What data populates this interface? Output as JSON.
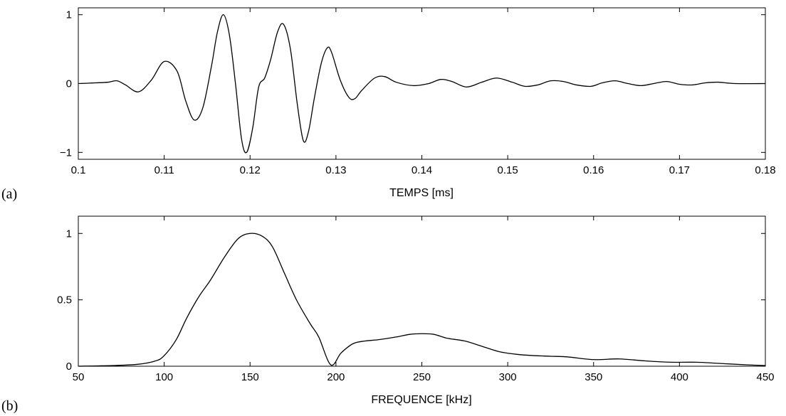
{
  "chart_data": [
    {
      "type": "line",
      "panel_label": "(a)",
      "title": "",
      "xlabel": "TEMPS [ms]",
      "ylabel": "",
      "xlim": [
        0.1,
        0.18
      ],
      "ylim": [
        -1.1,
        1.1
      ],
      "xticks": [
        "0.1",
        "0.11",
        "0.12",
        "0.13",
        "0.14",
        "0.15",
        "0.16",
        "0.17",
        "0.18"
      ],
      "xtick_values": [
        0.1,
        0.11,
        0.12,
        0.13,
        0.14,
        0.15,
        0.16,
        0.17,
        0.18
      ],
      "yticks": [
        "−1",
        "0",
        "1"
      ],
      "ytick_values": [
        -1,
        0,
        1
      ],
      "grid": false,
      "series": [
        {
          "x": [
            0.1,
            0.102,
            0.1035,
            0.1045,
            0.1055,
            0.107,
            0.1085,
            0.11,
            0.1115,
            0.1125,
            0.1135,
            0.1145,
            0.1155,
            0.1162,
            0.1169,
            0.1176,
            0.1183,
            0.119,
            0.1196,
            0.1203,
            0.121,
            0.1217,
            0.1224,
            0.1232,
            0.1239,
            0.1247,
            0.1255,
            0.1262,
            0.1268,
            0.1275,
            0.1283,
            0.129,
            0.1295,
            0.1305,
            0.1315,
            0.1322,
            0.133,
            0.1345,
            0.1357,
            0.137,
            0.139,
            0.1408,
            0.1422,
            0.1435,
            0.1452,
            0.147,
            0.1487,
            0.1505,
            0.152,
            0.1535,
            0.155,
            0.1565,
            0.158,
            0.1597,
            0.161,
            0.1625,
            0.164,
            0.1655,
            0.167,
            0.1685,
            0.17,
            0.1715,
            0.173,
            0.1745,
            0.1765,
            0.18
          ],
          "y": [
            0.0,
            0.01,
            0.02,
            0.04,
            -0.02,
            -0.12,
            0.05,
            0.32,
            0.18,
            -0.25,
            -0.53,
            -0.35,
            0.25,
            0.75,
            1.0,
            0.7,
            0.0,
            -0.8,
            -1.0,
            -0.65,
            -0.05,
            0.08,
            0.35,
            0.75,
            0.86,
            0.5,
            -0.3,
            -0.83,
            -0.7,
            -0.2,
            0.3,
            0.52,
            0.45,
            0.05,
            -0.2,
            -0.22,
            -0.1,
            0.08,
            0.1,
            0.02,
            -0.03,
            0.0,
            0.06,
            0.03,
            -0.05,
            0.02,
            0.08,
            0.02,
            -0.04,
            -0.02,
            0.04,
            0.03,
            -0.02,
            -0.04,
            0.01,
            0.04,
            0.0,
            -0.03,
            0.0,
            0.03,
            -0.01,
            -0.02,
            0.01,
            0.02,
            0.0,
            0.0
          ]
        }
      ]
    },
    {
      "type": "line",
      "panel_label": "(b)",
      "title": "",
      "xlabel": "FREQUENCE [kHz]",
      "ylabel": "",
      "xlim": [
        50,
        450
      ],
      "ylim": [
        0,
        1.13
      ],
      "xticks": [
        "50",
        "100",
        "150",
        "200",
        "250",
        "300",
        "350",
        "400",
        "450"
      ],
      "xtick_values": [
        50,
        100,
        150,
        200,
        250,
        300,
        350,
        400,
        450
      ],
      "yticks": [
        "0",
        "0.5",
        "1"
      ],
      "ytick_values": [
        0,
        0.5,
        1
      ],
      "grid": false,
      "series": [
        {
          "x": [
            50,
            70,
            85,
            95,
            100,
            107,
            113,
            120,
            127,
            135,
            143,
            150,
            157,
            163,
            170,
            177,
            185,
            190,
            197,
            203,
            210,
            217,
            225,
            235,
            243,
            250,
            257,
            265,
            275,
            285,
            295,
            305,
            315,
            325,
            335,
            350,
            365,
            380,
            395,
            410,
            425,
            440,
            450
          ],
          "y": [
            0.0,
            0.005,
            0.015,
            0.04,
            0.08,
            0.2,
            0.36,
            0.52,
            0.65,
            0.82,
            0.96,
            1.0,
            0.98,
            0.9,
            0.7,
            0.5,
            0.32,
            0.22,
            0.01,
            0.1,
            0.17,
            0.19,
            0.2,
            0.22,
            0.24,
            0.245,
            0.24,
            0.21,
            0.19,
            0.15,
            0.11,
            0.09,
            0.08,
            0.075,
            0.07,
            0.05,
            0.055,
            0.04,
            0.03,
            0.03,
            0.02,
            0.01,
            0.005
          ]
        }
      ]
    }
  ]
}
